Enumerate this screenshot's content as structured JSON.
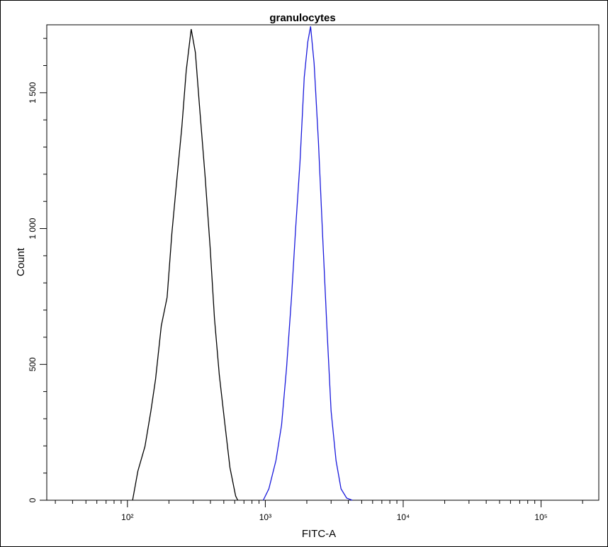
{
  "chart_data": {
    "type": "line",
    "title": "granulocytes",
    "x_label": "FITC-A",
    "y_label": "Count",
    "xscale": "log",
    "xlim": [
      26,
      262144
    ],
    "ylim": [
      0,
      1750
    ],
    "xticks": [
      {
        "value": 100,
        "label": "10²"
      },
      {
        "value": 1000,
        "label": "10³"
      },
      {
        "value": 10000,
        "label": "10⁴"
      },
      {
        "value": 100000,
        "label": "10⁵"
      }
    ],
    "xminorticks": [
      30,
      40,
      50,
      60,
      70,
      80,
      90,
      200,
      300,
      400,
      500,
      600,
      700,
      800,
      900,
      2000,
      3000,
      4000,
      5000,
      6000,
      7000,
      8000,
      9000,
      20000,
      30000,
      40000,
      50000,
      60000,
      70000,
      80000,
      90000,
      200000
    ],
    "yticks": [
      0,
      500,
      {
        "value": 1000,
        "label": "1 000"
      },
      {
        "value": 1500,
        "label": "1 500"
      }
    ],
    "yminorticks": [
      100,
      200,
      300,
      400,
      600,
      700,
      800,
      900,
      1100,
      1200,
      1300,
      1400,
      1600,
      1700
    ],
    "series": [
      {
        "color": "#000000",
        "x": [
          109,
          119,
          134,
          148,
          160,
          176,
          194,
          210,
          228,
          248,
          267,
          290,
          311,
          333,
          366,
          398,
          428,
          464,
          510,
          554,
          609,
          631
        ],
        "values": [
          0,
          107,
          198,
          329,
          446,
          642,
          747,
          982,
          1178,
          1373,
          1582,
          1734,
          1648,
          1452,
          1191,
          930,
          668,
          460,
          277,
          120,
          16,
          0
        ]
      },
      {
        "color": "#1a1adc",
        "x": [
          966,
          1061,
          1194,
          1312,
          1425,
          1549,
          1663,
          1784,
          1915,
          2032,
          2130,
          2259,
          2427,
          2600,
          2793,
          2999,
          3258,
          3540,
          3890,
          4275
        ],
        "values": [
          0,
          42,
          146,
          277,
          486,
          747,
          1008,
          1243,
          1556,
          1687,
          1744,
          1608,
          1321,
          982,
          642,
          329,
          146,
          42,
          8,
          0
        ]
      }
    ]
  }
}
